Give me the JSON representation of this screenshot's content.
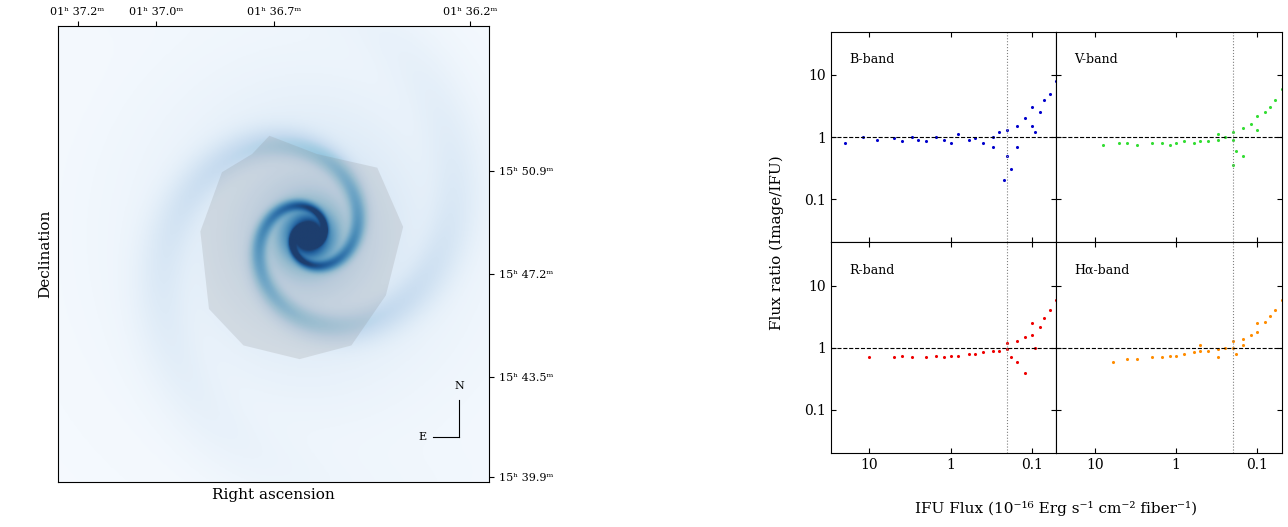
{
  "chart_data": [
    {
      "type": "image",
      "xlabel": "Right ascension",
      "ylabel": "Declination",
      "xlim": [
        37.25,
        36.15
      ],
      "xticks": [
        {
          "value": 37.2,
          "label": "01ʰ 37.2ᵐ"
        },
        {
          "value": 37.0,
          "label": "01ʰ 37.0ᵐ"
        },
        {
          "value": 36.7,
          "label": "01ʰ 36.7ᵐ"
        },
        {
          "value": 36.2,
          "label": "01ʰ 36.2ᵐ"
        }
      ],
      "ylim": [
        39.7,
        56.1
      ],
      "yticks": [
        {
          "value": 50.9,
          "label": "15ʰ 50.9ᵐ"
        },
        {
          "value": 47.2,
          "label": "15ʰ 47.2ᵐ"
        },
        {
          "value": 43.5,
          "label": "15ʰ 43.5ᵐ"
        },
        {
          "value": 39.9,
          "label": "15ʰ 39.9ᵐ"
        }
      ],
      "annotations": [
        "N",
        "E"
      ]
    },
    {
      "type": "scatter",
      "title": "B-band",
      "color": "#0000cc",
      "marker": "dot",
      "log": true,
      "tick_labels": "y",
      "xlim": [
        30,
        0.05
      ],
      "xticks": [
        10,
        1,
        0.1
      ],
      "ylim": [
        0.02,
        50
      ],
      "yticks": [
        10,
        1,
        0.1
      ],
      "reference_lines": {
        "y": 1,
        "x": 0.2
      },
      "x": [
        20,
        12,
        8,
        5,
        4,
        3,
        2.5,
        2,
        1.5,
        1.2,
        1,
        0.8,
        0.6,
        0.5,
        0.4,
        0.3,
        0.25,
        0.2,
        0.2,
        0.18,
        0.15,
        0.15,
        0.12,
        0.1,
        0.1,
        0.08,
        0.07,
        0.06,
        0.05,
        0.3,
        0.22,
        0.09
      ],
      "y": [
        0.8,
        1.0,
        0.9,
        0.95,
        0.85,
        1.0,
        0.9,
        0.85,
        1.0,
        0.9,
        0.8,
        1.1,
        0.9,
        0.95,
        0.8,
        1.0,
        1.2,
        0.5,
        1.3,
        0.3,
        1.5,
        0.7,
        2.0,
        1.5,
        3.0,
        2.5,
        4.0,
        5.0,
        8.0,
        0.7,
        0.2,
        1.2
      ]
    },
    {
      "type": "scatter",
      "title": "V-band",
      "color": "#33dd33",
      "marker": "dot",
      "log": true,
      "tick_labels": false,
      "xlim": [
        30,
        0.05
      ],
      "xticks": [
        10,
        1,
        0.1
      ],
      "ylim": [
        0.02,
        50
      ],
      "yticks": [
        10,
        1,
        0.1
      ],
      "reference_lines": {
        "y": 1,
        "x": 0.2
      },
      "x": [
        8,
        5,
        4,
        3,
        2,
        1.5,
        1.2,
        1,
        0.8,
        0.6,
        0.5,
        0.4,
        0.3,
        0.25,
        0.2,
        0.2,
        0.18,
        0.15,
        0.15,
        0.12,
        0.1,
        0.1,
        0.08,
        0.07,
        0.06,
        0.05,
        0.2,
        0.3
      ],
      "y": [
        0.75,
        0.8,
        0.8,
        0.75,
        0.8,
        0.8,
        0.75,
        0.8,
        0.85,
        0.8,
        0.85,
        0.85,
        0.9,
        1.0,
        0.9,
        1.2,
        0.6,
        1.4,
        0.5,
        1.6,
        1.3,
        2.2,
        2.5,
        3.0,
        4.0,
        6.0,
        0.35,
        1.1
      ]
    },
    {
      "type": "scatter",
      "title": "R-band",
      "color": "#ee0000",
      "marker": "dot",
      "log": true,
      "tick_labels": true,
      "xlim": [
        30,
        0.05
      ],
      "xticks": [
        10,
        1,
        0.1
      ],
      "ylim": [
        0.02,
        50
      ],
      "yticks": [
        10,
        1,
        0.1
      ],
      "reference_lines": {
        "y": 1,
        "x": 0.2
      },
      "x": [
        10,
        5,
        4,
        3,
        2,
        1.5,
        1.2,
        1,
        0.8,
        0.6,
        0.5,
        0.4,
        0.3,
        0.25,
        0.2,
        0.2,
        0.18,
        0.15,
        0.15,
        0.12,
        0.1,
        0.1,
        0.08,
        0.07,
        0.06,
        0.05,
        0.12,
        0.09
      ],
      "y": [
        0.7,
        0.7,
        0.75,
        0.7,
        0.7,
        0.75,
        0.7,
        0.75,
        0.75,
        0.8,
        0.8,
        0.85,
        0.9,
        0.9,
        0.95,
        1.2,
        0.7,
        1.3,
        0.6,
        1.5,
        1.6,
        2.5,
        2.2,
        3.0,
        4.0,
        6.0,
        0.4,
        1.0
      ]
    },
    {
      "type": "scatter",
      "title": "Hα-band",
      "color": "#ff8c00",
      "marker": "dot",
      "log": true,
      "tick_labels": "x",
      "xlim": [
        30,
        0.05
      ],
      "xticks": [
        10,
        1,
        0.1
      ],
      "ylim": [
        0.02,
        50
      ],
      "yticks": [
        10,
        1,
        0.1
      ],
      "reference_lines": {
        "y": 1,
        "x": 0.2
      },
      "x": [
        6,
        4,
        3,
        2,
        1.5,
        1.2,
        1,
        0.8,
        0.6,
        0.5,
        0.4,
        0.3,
        0.25,
        0.2,
        0.2,
        0.18,
        0.15,
        0.15,
        0.12,
        0.1,
        0.1,
        0.08,
        0.07,
        0.06,
        0.05,
        0.3,
        0.5
      ],
      "y": [
        0.6,
        0.65,
        0.65,
        0.7,
        0.7,
        0.75,
        0.75,
        0.8,
        0.85,
        0.9,
        0.9,
        0.95,
        1.0,
        1.0,
        1.3,
        0.8,
        1.4,
        1.1,
        1.6,
        1.8,
        2.5,
        2.6,
        3.2,
        4.0,
        6.0,
        0.7,
        1.1
      ]
    }
  ],
  "shared_labels": {
    "x": "IFU Flux (10⁻¹⁶ Erg s⁻¹ cm⁻² fiber⁻¹)",
    "y": "Flux ratio (Image/IFU)"
  }
}
